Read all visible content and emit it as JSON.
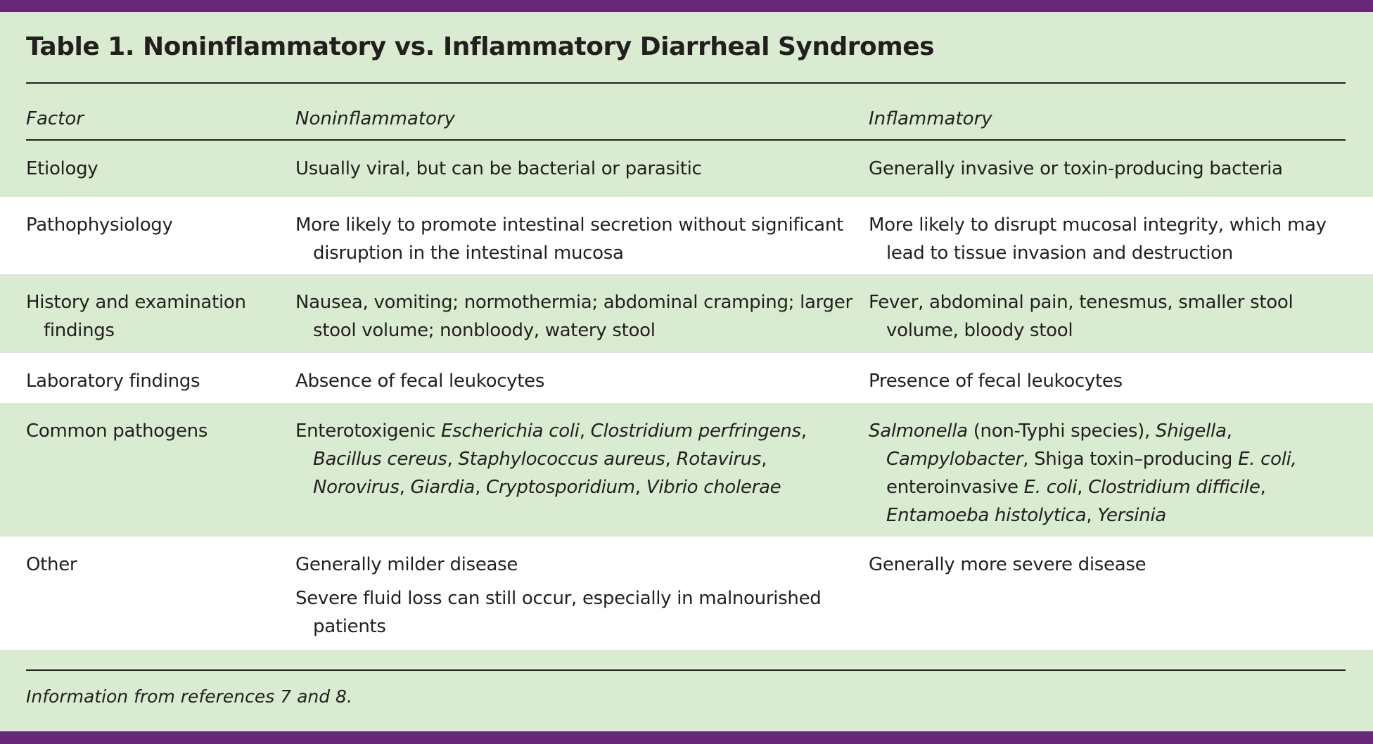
{
  "title": "Table 1. Noninflammatory vs. Inflammatory Diarrheal Syndromes",
  "headers": [
    "Factor",
    "Noninflammatory",
    "Inflammatory"
  ],
  "colors": {
    "accent_bar": "#68287a",
    "band_green": "#d9ebd0",
    "band_white": "#ffffff",
    "text": "#231f20"
  },
  "rows": [
    {
      "factor": "Etiology",
      "non": [
        [
          {
            "t": "Usually viral, but can be bacterial or parasitic"
          }
        ]
      ],
      "inf": [
        [
          {
            "t": "Generally invasive or toxin-producing bacteria"
          }
        ]
      ]
    },
    {
      "factor": "Pathophysiology",
      "non": [
        [
          {
            "t": "More likely to promote intestinal secretion without significant disruption in the intestinal mucosa"
          }
        ]
      ],
      "inf": [
        [
          {
            "t": "More likely to disrupt mucosal integrity, which may lead to tissue invasion and destruction"
          }
        ]
      ]
    },
    {
      "factor": "History and examination findings",
      "non": [
        [
          {
            "t": "Nausea, vomiting; normothermia; abdominal cramping; larger stool volume; nonbloody, watery stool"
          }
        ]
      ],
      "inf": [
        [
          {
            "t": "Fever, abdominal pain, tenesmus, smaller stool volume, bloody stool"
          }
        ]
      ]
    },
    {
      "factor": "Laboratory findings",
      "non": [
        [
          {
            "t": "Absence of fecal leukocytes"
          }
        ]
      ],
      "inf": [
        [
          {
            "t": "Presence of fecal leukocytes"
          }
        ]
      ]
    },
    {
      "factor": "Common pathogens",
      "non": [
        [
          {
            "t": "Enterotoxigenic "
          },
          {
            "t": "Escherichia coli",
            "i": true
          },
          {
            "t": ", "
          },
          {
            "t": "Clostridium perfringens",
            "i": true
          },
          {
            "t": ", "
          },
          {
            "t": "Bacillus cereus",
            "i": true
          },
          {
            "t": ", "
          },
          {
            "t": "Staphylococcus aureus",
            "i": true
          },
          {
            "t": ", "
          },
          {
            "t": "Rotavirus",
            "i": true
          },
          {
            "t": ", "
          },
          {
            "t": "Norovirus",
            "i": true
          },
          {
            "t": ", "
          },
          {
            "t": "Giardia",
            "i": true
          },
          {
            "t": ", "
          },
          {
            "t": "Cryptosporidium",
            "i": true
          },
          {
            "t": ", "
          },
          {
            "t": "Vibrio cholerae",
            "i": true
          }
        ]
      ],
      "inf": [
        [
          {
            "t": "Salmonella",
            "i": true
          },
          {
            "t": " (non-Typhi species), "
          },
          {
            "t": "Shigella",
            "i": true
          },
          {
            "t": ", "
          },
          {
            "t": "Campylobacter",
            "i": true
          },
          {
            "t": ", Shiga toxin–producing "
          },
          {
            "t": "E. coli,",
            "i": true
          },
          {
            "t": " enteroinvasive "
          },
          {
            "t": "E. coli",
            "i": true
          },
          {
            "t": ", "
          },
          {
            "t": "Clostridium difficile",
            "i": true
          },
          {
            "t": ", "
          },
          {
            "t": "Entamoeba histolytica",
            "i": true
          },
          {
            "t": ", "
          },
          {
            "t": "Yersinia",
            "i": true
          }
        ]
      ]
    },
    {
      "factor": "Other",
      "non": [
        [
          {
            "t": "Generally milder disease"
          }
        ],
        [
          {
            "t": "Severe fluid loss can still occur, especially in malnourished patients"
          }
        ]
      ],
      "inf": [
        [
          {
            "t": "Generally more severe disease"
          }
        ]
      ]
    }
  ],
  "footnote": "Information from references 7 and 8."
}
